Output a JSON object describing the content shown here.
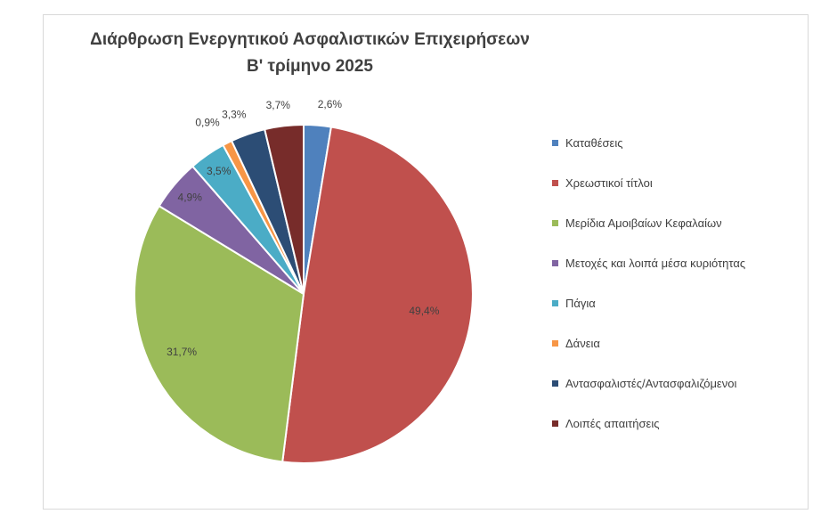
{
  "chart_data": {
    "type": "pie",
    "title": "Διάρθρωση Ενεργητικού Ασφαλιστικών Επιχειρήσεων",
    "subtitle": "Β' τρίμηνο 2025",
    "legend_position": "right",
    "slices": [
      {
        "name": "Καταθέσεις",
        "value": 2.6,
        "label": "2,6%",
        "color": "#4f81bd"
      },
      {
        "name": "Χρεωστικοί τίτλοι",
        "value": 49.4,
        "label": "49,4%",
        "color": "#c0504d"
      },
      {
        "name": "Μερίδια Αμοιβαίων Κεφαλαίων",
        "value": 31.7,
        "label": "31,7%",
        "color": "#9bbb59"
      },
      {
        "name": "Μετοχές και λοιπά μέσα κυριότητας",
        "value": 4.9,
        "label": "4,9%",
        "color": "#8064a2"
      },
      {
        "name": "Πάγια",
        "value": 3.5,
        "label": "3,5%",
        "color": "#4bacc6"
      },
      {
        "name": "Δάνεια",
        "value": 0.9,
        "label": "0,9%",
        "color": "#f79646"
      },
      {
        "name": "Αντασφαλιστές/Αντασφαλιζόμενοι",
        "value": 3.3,
        "label": "3,3%",
        "color": "#2c4d75"
      },
      {
        "name": "Λοιπές απαιτήσεις",
        "value": 3.7,
        "label": "3,7%",
        "color": "#772c2a"
      }
    ]
  }
}
